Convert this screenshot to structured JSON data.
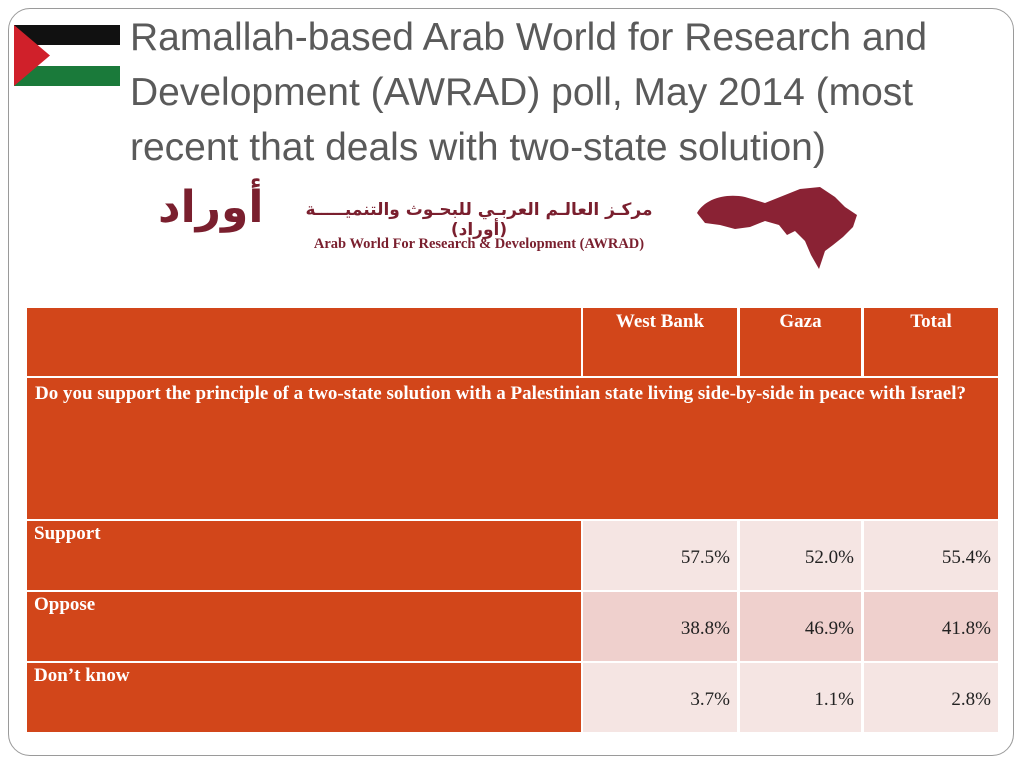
{
  "slide": {
    "title": "Ramallah-based Arab World for Research and Development (AWRAD) poll, May 2014 (most recent that deals with two-state solution)",
    "logo": {
      "emblem": "أوراد",
      "arabic_name": "مركـز العالـم العربـي للبحـوث والتنميـــــة (أوراد)",
      "english_name": "Arab World For Research & Development (AWRAD)"
    },
    "table": {
      "columns": [
        "West Bank",
        "Gaza",
        "Total"
      ],
      "question": "Do you support the principle of a two-state solution with a Palestinian state living side-by-side in peace with Israel?",
      "rows": [
        {
          "label": "Support",
          "cells": [
            "57.5%",
            "52.0%",
            "55.4%"
          ]
        },
        {
          "label": "Oppose",
          "cells": [
            "38.8%",
            "46.9%",
            "41.8%"
          ]
        },
        {
          "label": "Don’t know",
          "cells": [
            "3.7%",
            "1.1%",
            "2.8%"
          ]
        }
      ]
    }
  }
}
